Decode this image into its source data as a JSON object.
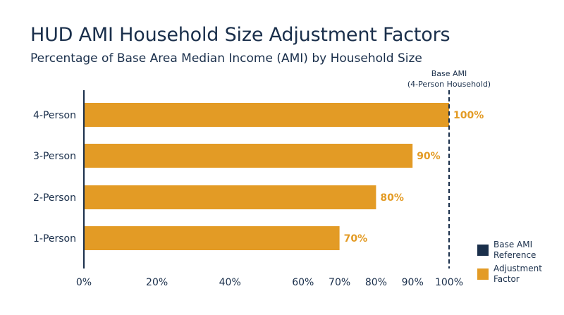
{
  "title": "HUD AMI Household Size Adjustment Factors",
  "subtitle": "Percentage of Base Area Median Income (AMI) by Household Size",
  "colors": {
    "bar": "#e39b25",
    "reference": "#1a2f4b",
    "text": "#1a2f4b"
  },
  "chart_data": {
    "type": "bar",
    "orientation": "horizontal",
    "categories": [
      "4-Person",
      "3-Person",
      "2-Person",
      "1-Person"
    ],
    "series": [
      {
        "name": "Adjustment Factor",
        "values": [
          100,
          90,
          80,
          70
        ]
      }
    ],
    "data_labels": [
      "100%",
      "90%",
      "80%",
      "70%"
    ],
    "x_ticks": [
      0,
      20,
      40,
      60,
      70,
      80,
      90,
      100
    ],
    "x_tick_labels": [
      "0%",
      "20%",
      "40%",
      "60%",
      "70%",
      "80%",
      "90%",
      "100%"
    ],
    "xlim": [
      0,
      100
    ],
    "grid": false,
    "reference_line": {
      "value": 100,
      "label_lines": [
        "Base AMI",
        "(4-Person Household)"
      ],
      "style": "dashed"
    },
    "legend": {
      "placement": "bottom-right",
      "entries": [
        {
          "label_lines": [
            "Base AMI",
            "Reference"
          ],
          "color": "#1a2f4b"
        },
        {
          "label_lines": [
            "Adjustment",
            "Factor"
          ],
          "color": "#e39b25"
        }
      ]
    }
  }
}
